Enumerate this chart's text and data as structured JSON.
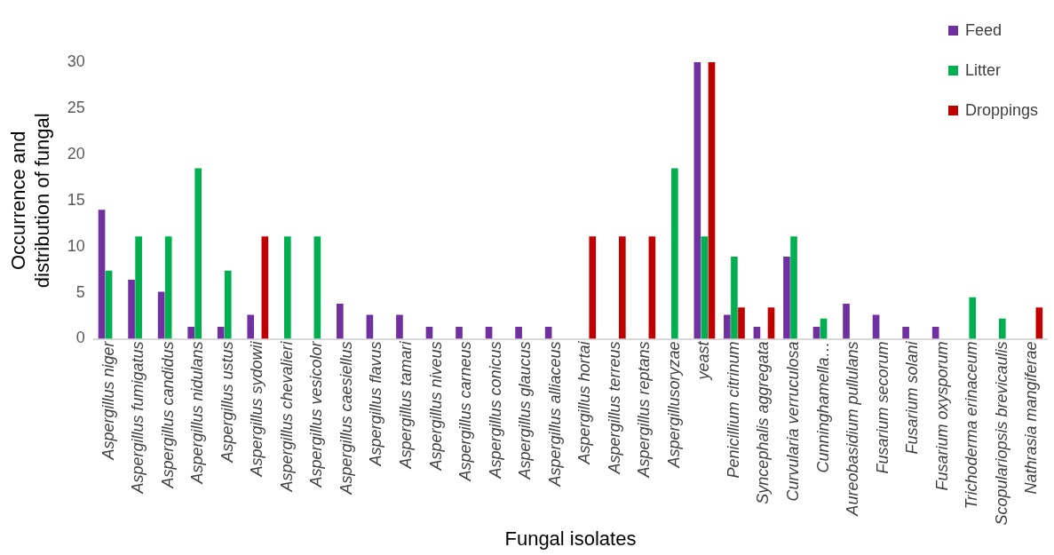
{
  "chart_data": {
    "type": "bar",
    "xlabel": "Fungal isolates",
    "ylabel": "Occurrence and distribution of fungal",
    "categories": [
      "Aspergillus niger",
      "Aspergillus fumigatus",
      "Aspergillus candidus",
      "Aspergillus nidulans",
      "Aspergillus ustus",
      "Aspergillus sydowii",
      "Aspergillus chevalieri",
      "Aspergillus vesicolor",
      "Aspergillus caesiellus",
      "Aspergillus flavus",
      "Aspergillus tamari",
      "Aspergillus niveus",
      "Aspergillus carneus",
      "Aspergillus conicus",
      "Aspergillus glaucus",
      "Aspergillus alliaceus",
      "Aspergillus hortai",
      "Aspergillus terreus",
      "Aspergillus reptans",
      "Aspergillusoryzae",
      "yeast",
      "Penicillium citrinum",
      "Syncephalis aggregata",
      "Curvularia verruculosa",
      "Cunninghamella…",
      "Aureobasidium pullulans",
      "Fusarium secorum",
      "Fusarium solani",
      "Fusarium oxysporum",
      "Trichoderma erinaceum",
      "Scopulariopsis brevicaulis",
      "Nathrasia mangiferae"
    ],
    "series": [
      {
        "name": "Feed",
        "color": "#7030a0",
        "values": [
          14,
          6.4,
          5.1,
          1.3,
          1.3,
          2.6,
          null,
          null,
          3.8,
          2.6,
          2.6,
          1.3,
          1.3,
          1.3,
          1.3,
          1.3,
          null,
          null,
          null,
          null,
          30,
          2.6,
          1.3,
          8.9,
          1.3,
          3.8,
          2.6,
          1.3,
          1.3,
          null,
          null,
          null
        ]
      },
      {
        "name": "Litter",
        "color": "#00b050",
        "values": [
          7.4,
          11.1,
          11.1,
          18.5,
          7.4,
          null,
          11.1,
          11.1,
          null,
          null,
          null,
          null,
          null,
          null,
          null,
          null,
          null,
          null,
          null,
          18.5,
          11.1,
          8.9,
          null,
          11.1,
          2.2,
          null,
          null,
          null,
          null,
          4.5,
          2.2,
          null
        ]
      },
      {
        "name": "Droppings",
        "color": "#c00000",
        "values": [
          null,
          null,
          null,
          null,
          null,
          11.1,
          null,
          null,
          null,
          null,
          null,
          null,
          null,
          null,
          null,
          null,
          11.1,
          11.1,
          11.1,
          null,
          30,
          3.4,
          3.4,
          null,
          null,
          null,
          null,
          null,
          null,
          null,
          null,
          3.4
        ]
      }
    ],
    "ylim": [
      0,
      30
    ],
    "yticks": [
      0,
      5,
      10,
      15,
      20,
      25,
      30
    ],
    "grid": false,
    "legend": "top right"
  }
}
